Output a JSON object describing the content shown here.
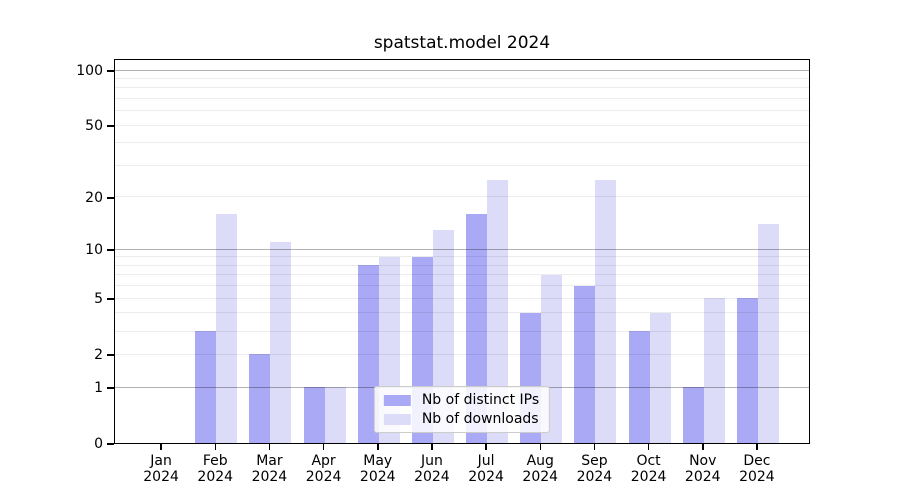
{
  "title": "spatstat.model 2024",
  "legend": {
    "items": [
      {
        "label": "Nb of distinct IPs",
        "color": "#a9a9f5"
      },
      {
        "label": "Nb of downloads",
        "color": "#dcdcf8"
      }
    ],
    "position": "lower center"
  },
  "chart_data": {
    "type": "bar",
    "title": "spatstat.model 2024",
    "categories": [
      "Jan 2024",
      "Feb 2024",
      "Mar 2024",
      "Apr 2024",
      "May 2024",
      "Jun 2024",
      "Jul 2024",
      "Aug 2024",
      "Sep 2024",
      "Oct 2024",
      "Nov 2024",
      "Dec 2024"
    ],
    "series": [
      {
        "name": "Nb of distinct IPs",
        "color": "#a9a9f5",
        "values": [
          0,
          3,
          2,
          1,
          8,
          9,
          16,
          4,
          6,
          3,
          1,
          5
        ]
      },
      {
        "name": "Nb of downloads",
        "color": "#dcdcf8",
        "values": [
          0,
          16,
          11,
          1,
          9,
          13,
          25,
          7,
          25,
          4,
          5,
          14
        ]
      }
    ],
    "xlabel": "",
    "ylabel": "",
    "y_scale": "log1p",
    "ylim": [
      0,
      100
    ],
    "y_ticks": [
      0,
      1,
      2,
      5,
      10,
      20,
      50,
      100
    ],
    "grid": "on",
    "grid_major_values": [
      1,
      10,
      100
    ],
    "grid_minor_values": [
      2,
      3,
      4,
      5,
      6,
      7,
      8,
      9,
      20,
      30,
      40,
      50,
      60,
      70,
      80,
      90
    ],
    "grid_drawn_over_bars": true,
    "legend_position": "lower center"
  }
}
